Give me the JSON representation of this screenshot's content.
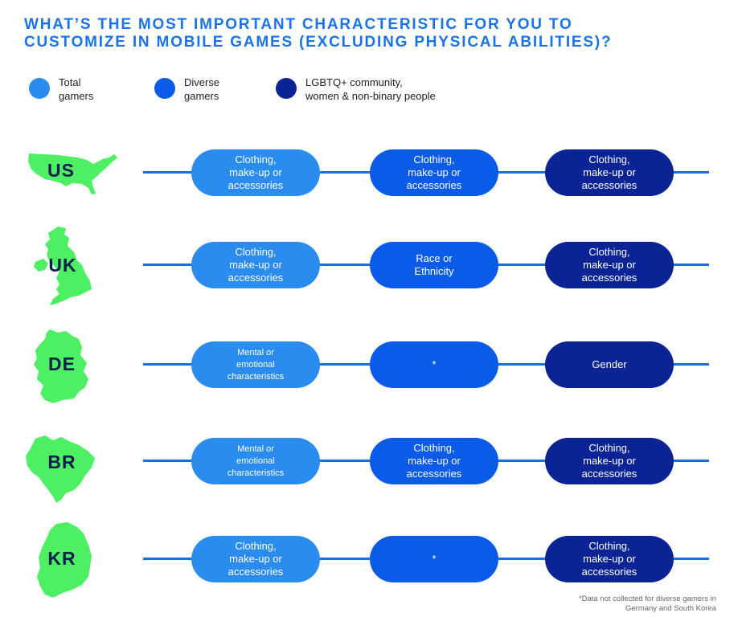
{
  "title": {
    "line1": "What’s the most important characteristic for you to",
    "line2": "customize in mobile games (excluding physical abilities)?"
  },
  "legend": [
    {
      "line1": "Total",
      "line2": "gamers",
      "color": "#2b8cf0"
    },
    {
      "line1": "Diverse",
      "line2": "gamers",
      "color": "#0a5ce8"
    },
    {
      "line1": "LGBTQ+ community,",
      "line2": "women & non-binary  people",
      "color": "#0a2496"
    }
  ],
  "colors": {
    "map": "#4cf062",
    "line": "#1a6fe0",
    "code": "#0b1f4d"
  },
  "chart_data": {
    "type": "table",
    "columns": [
      "Total gamers",
      "Diverse gamers",
      "LGBTQ+ community, women & non-binary people"
    ],
    "rows": [
      {
        "country": "US",
        "values": [
          [
            "Clothing,",
            "make-up or",
            "accessories"
          ],
          [
            "Clothing,",
            "make-up or",
            "accessories"
          ],
          [
            "Clothing,",
            "make-up or",
            "accessories"
          ]
        ]
      },
      {
        "country": "UK",
        "values": [
          [
            "Clothing,",
            "make-up or",
            "accessories"
          ],
          [
            "Race or",
            "Ethnicity"
          ],
          [
            "Clothing,",
            "make-up or",
            "accessories"
          ]
        ]
      },
      {
        "country": "DE",
        "values": [
          [
            "Mental or",
            "emotional",
            "characteristics"
          ],
          [
            "*"
          ],
          [
            "Gender"
          ]
        ]
      },
      {
        "country": "BR",
        "values": [
          [
            "Mental or",
            "emotional",
            "characteristics"
          ],
          [
            "Clothing,",
            "make-up or",
            "accessories"
          ],
          [
            "Clothing,",
            "make-up or",
            "accessories"
          ]
        ]
      },
      {
        "country": "KR",
        "values": [
          [
            "Clothing,",
            "make-up or",
            "accessories"
          ],
          [
            "*"
          ],
          [
            "Clothing,",
            "make-up or",
            "accessories"
          ]
        ]
      }
    ]
  },
  "footnote": {
    "line1": "*Data not collected for diverse gamers in",
    "line2": "Germany and South Korea"
  }
}
